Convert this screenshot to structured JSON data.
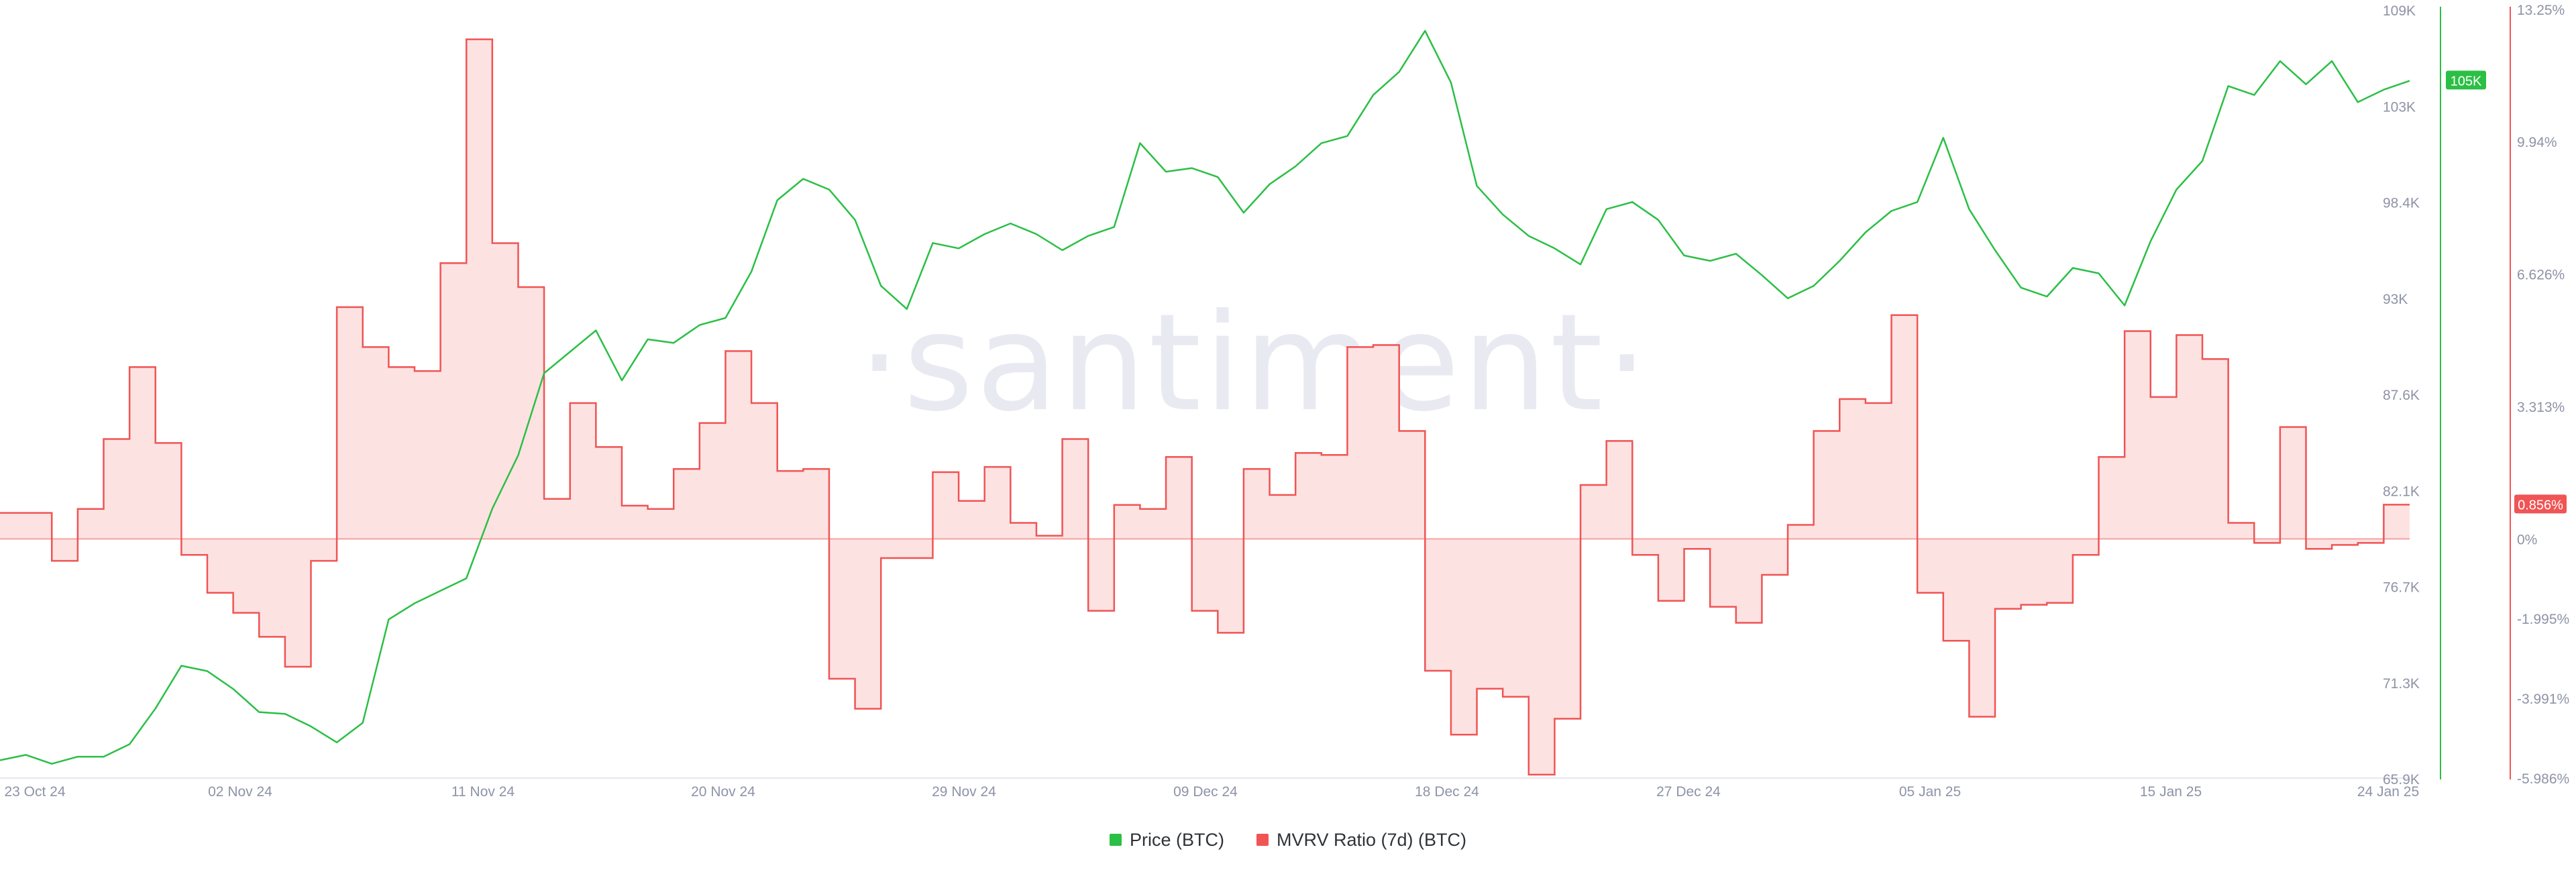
{
  "watermark": "·santiment·",
  "colors": {
    "price": "#2bbf45",
    "mvrv": "#f05454",
    "mvrv_fill": "#fde2e2",
    "zero_line": "#f3a3a3",
    "axis_text": "#8e93a6",
    "watermark": "#e9eaf1",
    "grid": "#e6e8ee"
  },
  "chart_data": {
    "type": "line",
    "x_ticks": [
      "23 Oct 24",
      "02 Nov 24",
      "11 Nov 24",
      "20 Nov 24",
      "29 Nov 24",
      "09 Dec 24",
      "18 Dec 24",
      "27 Dec 24",
      "05 Jan 25",
      "15 Jan 25",
      "24 Jan 25"
    ],
    "x_range": [
      "2024-10-23",
      "2025-01-24"
    ],
    "y_left": {
      "ticks": [
        "109K",
        "103K",
        "98.4K",
        "93K",
        "87.6K",
        "82.1K",
        "76.7K",
        "71.3K",
        "65.9K"
      ],
      "range": [
        65900,
        109000
      ],
      "current_label": "105K",
      "current_value": 105000
    },
    "y_right": {
      "ticks": [
        "13.25%",
        "9.94%",
        "6.626%",
        "3.313%",
        "0%",
        "-1.995%",
        "-3.991%",
        "-5.986%"
      ],
      "range": [
        -5.986,
        13.25
      ],
      "current_label": "0.856%",
      "current_value": 0.856
    },
    "series": [
      {
        "name": "Price (BTC)",
        "axis": "left",
        "points": [
          [
            "2024-10-23",
            66900
          ],
          [
            "2024-10-24",
            67200
          ],
          [
            "2024-10-25",
            66700
          ],
          [
            "2024-10-26",
            67100
          ],
          [
            "2024-10-27",
            67100
          ],
          [
            "2024-10-28",
            67800
          ],
          [
            "2024-10-29",
            69800
          ],
          [
            "2024-10-30",
            72200
          ],
          [
            "2024-10-31",
            71900
          ],
          [
            "2024-11-01",
            70900
          ],
          [
            "2024-11-02",
            69600
          ],
          [
            "2024-11-03",
            69500
          ],
          [
            "2024-11-04",
            68800
          ],
          [
            "2024-11-05",
            67900
          ],
          [
            "2024-11-06",
            69000
          ],
          [
            "2024-11-07",
            74800
          ],
          [
            "2024-11-08",
            75700
          ],
          [
            "2024-11-09",
            76400
          ],
          [
            "2024-11-10",
            77100
          ],
          [
            "2024-11-11",
            81000
          ],
          [
            "2024-11-12",
            84000
          ],
          [
            "2024-11-13",
            88600
          ],
          [
            "2024-11-14",
            89800
          ],
          [
            "2024-11-15",
            91000
          ],
          [
            "2024-11-16",
            88200
          ],
          [
            "2024-11-17",
            90500
          ],
          [
            "2024-11-18",
            90300
          ],
          [
            "2024-11-19",
            91300
          ],
          [
            "2024-11-20",
            91700
          ],
          [
            "2024-11-21",
            94300
          ],
          [
            "2024-11-22",
            98300
          ],
          [
            "2024-11-23",
            99500
          ],
          [
            "2024-11-24",
            98900
          ],
          [
            "2024-11-25",
            97200
          ],
          [
            "2024-11-26",
            93500
          ],
          [
            "2024-11-27",
            92200
          ],
          [
            "2024-11-28",
            95900
          ],
          [
            "2024-11-29",
            95600
          ],
          [
            "2024-11-30",
            96400
          ],
          [
            "2024-12-01",
            97000
          ],
          [
            "2024-12-02",
            96400
          ],
          [
            "2024-12-03",
            95500
          ],
          [
            "2024-12-04",
            96300
          ],
          [
            "2024-12-05",
            96800
          ],
          [
            "2024-12-06",
            101500
          ],
          [
            "2024-12-07",
            99900
          ],
          [
            "2024-12-08",
            100100
          ],
          [
            "2024-12-09",
            99600
          ],
          [
            "2024-12-10",
            97600
          ],
          [
            "2024-12-11",
            99200
          ],
          [
            "2024-12-12",
            100200
          ],
          [
            "2024-12-13",
            101500
          ],
          [
            "2024-12-14",
            101900
          ],
          [
            "2024-12-15",
            104200
          ],
          [
            "2024-12-16",
            105500
          ],
          [
            "2024-12-17",
            107800
          ],
          [
            "2024-12-18",
            104900
          ],
          [
            "2024-12-19",
            99100
          ],
          [
            "2024-12-20",
            97500
          ],
          [
            "2024-12-21",
            96300
          ],
          [
            "2024-12-22",
            95600
          ],
          [
            "2024-12-23",
            94700
          ],
          [
            "2024-12-24",
            97800
          ],
          [
            "2024-12-25",
            98200
          ],
          [
            "2024-12-26",
            97200
          ],
          [
            "2024-12-27",
            95200
          ],
          [
            "2024-12-28",
            94900
          ],
          [
            "2024-12-29",
            95300
          ],
          [
            "2024-12-30",
            94100
          ],
          [
            "2024-12-31",
            92800
          ],
          [
            "2025-01-01",
            93500
          ],
          [
            "2025-01-02",
            94900
          ],
          [
            "2025-01-03",
            96500
          ],
          [
            "2025-01-04",
            97700
          ],
          [
            "2025-01-05",
            98200
          ],
          [
            "2025-01-06",
            101800
          ],
          [
            "2025-01-07",
            97800
          ],
          [
            "2025-01-08",
            95500
          ],
          [
            "2025-01-09",
            93400
          ],
          [
            "2025-01-10",
            92900
          ],
          [
            "2025-01-11",
            94500
          ],
          [
            "2025-01-12",
            94200
          ],
          [
            "2025-01-13",
            92400
          ],
          [
            "2025-01-14",
            96000
          ],
          [
            "2025-01-15",
            98900
          ],
          [
            "2025-01-16",
            100500
          ],
          [
            "2025-01-17",
            104700
          ],
          [
            "2025-01-18",
            104200
          ],
          [
            "2025-01-19",
            106100
          ],
          [
            "2025-01-20",
            104800
          ],
          [
            "2025-01-21",
            106100
          ],
          [
            "2025-01-22",
            103800
          ],
          [
            "2025-01-23",
            104500
          ],
          [
            "2025-01-24",
            105000
          ]
        ]
      },
      {
        "name": "MVRV Ratio (7d) (BTC)",
        "axis": "right",
        "points": [
          [
            "2024-10-23",
            0.65
          ],
          [
            "2024-10-24",
            0.65
          ],
          [
            "2024-10-25",
            -0.55
          ],
          [
            "2024-10-26",
            0.75
          ],
          [
            "2024-10-27",
            2.5
          ],
          [
            "2024-10-28",
            4.3
          ],
          [
            "2024-10-29",
            2.4
          ],
          [
            "2024-10-30",
            -0.4
          ],
          [
            "2024-10-31",
            -1.35
          ],
          [
            "2024-11-01",
            -1.85
          ],
          [
            "2024-11-02",
            -2.45
          ],
          [
            "2024-11-03",
            -3.2
          ],
          [
            "2024-11-04",
            -0.55
          ],
          [
            "2024-11-05",
            5.8
          ],
          [
            "2024-11-06",
            4.8
          ],
          [
            "2024-11-07",
            4.3
          ],
          [
            "2024-11-08",
            4.2
          ],
          [
            "2024-11-09",
            6.9
          ],
          [
            "2024-11-10",
            12.5
          ],
          [
            "2024-11-11",
            7.4
          ],
          [
            "2024-11-12",
            6.3
          ],
          [
            "2024-11-13",
            1.0
          ],
          [
            "2024-11-14",
            3.4
          ],
          [
            "2024-11-15",
            2.3
          ],
          [
            "2024-11-16",
            0.83
          ],
          [
            "2024-11-17",
            0.75
          ],
          [
            "2024-11-18",
            1.75
          ],
          [
            "2024-11-19",
            2.9
          ],
          [
            "2024-11-20",
            4.7
          ],
          [
            "2024-11-21",
            3.4
          ],
          [
            "2024-11-22",
            1.7
          ],
          [
            "2024-11-23",
            1.75
          ],
          [
            "2024-11-24",
            -3.5
          ],
          [
            "2024-11-25",
            -4.25
          ],
          [
            "2024-11-26",
            -0.48
          ],
          [
            "2024-11-27",
            -0.48
          ],
          [
            "2024-11-28",
            1.67
          ],
          [
            "2024-11-29",
            0.95
          ],
          [
            "2024-11-30",
            1.8
          ],
          [
            "2024-12-01",
            0.4
          ],
          [
            "2024-12-02",
            0.08
          ],
          [
            "2024-12-03",
            2.5
          ],
          [
            "2024-12-04",
            -1.8
          ],
          [
            "2024-12-05",
            0.85
          ],
          [
            "2024-12-06",
            0.75
          ],
          [
            "2024-12-07",
            2.05
          ],
          [
            "2024-12-08",
            -1.8
          ],
          [
            "2024-12-09",
            -2.35
          ],
          [
            "2024-12-10",
            1.75
          ],
          [
            "2024-12-11",
            1.1
          ],
          [
            "2024-12-12",
            2.15
          ],
          [
            "2024-12-13",
            2.1
          ],
          [
            "2024-12-14",
            4.8
          ],
          [
            "2024-12-15",
            4.85
          ],
          [
            "2024-12-16",
            2.7
          ],
          [
            "2024-12-17",
            -3.3
          ],
          [
            "2024-12-18",
            -4.9
          ],
          [
            "2024-12-19",
            -3.75
          ],
          [
            "2024-12-20",
            -3.95
          ],
          [
            "2024-12-21",
            -5.9
          ],
          [
            "2024-12-22",
            -4.5
          ],
          [
            "2024-12-23",
            1.35
          ],
          [
            "2024-12-24",
            2.45
          ],
          [
            "2024-12-25",
            -0.4
          ],
          [
            "2024-12-26",
            -1.55
          ],
          [
            "2024-12-27",
            -0.25
          ],
          [
            "2024-12-28",
            -1.7
          ],
          [
            "2024-12-29",
            -2.1
          ],
          [
            "2024-12-30",
            -0.9
          ],
          [
            "2024-12-31",
            0.35
          ],
          [
            "2025-01-01",
            2.7
          ],
          [
            "2025-01-02",
            3.5
          ],
          [
            "2025-01-03",
            3.4
          ],
          [
            "2025-01-04",
            5.6
          ],
          [
            "2025-01-05",
            -1.35
          ],
          [
            "2025-01-06",
            -2.55
          ],
          [
            "2025-01-07",
            -4.45
          ],
          [
            "2025-01-08",
            -1.75
          ],
          [
            "2025-01-09",
            -1.65
          ],
          [
            "2025-01-10",
            -1.6
          ],
          [
            "2025-01-11",
            -0.4
          ],
          [
            "2025-01-12",
            2.05
          ],
          [
            "2025-01-13",
            5.2
          ],
          [
            "2025-01-14",
            3.55
          ],
          [
            "2025-01-15",
            5.1
          ],
          [
            "2025-01-16",
            4.5
          ],
          [
            "2025-01-17",
            0.4
          ],
          [
            "2025-01-18",
            -0.1
          ],
          [
            "2025-01-19",
            2.8
          ],
          [
            "2025-01-20",
            -0.25
          ],
          [
            "2025-01-21",
            -0.15
          ],
          [
            "2025-01-22",
            -0.1
          ],
          [
            "2025-01-23",
            0.856
          ],
          [
            "2025-01-24",
            0.856
          ]
        ]
      }
    ],
    "grid": false,
    "legend_position": "bottom-center"
  },
  "legend": {
    "items": [
      {
        "label": "Price (BTC)",
        "color": "#2bbf45"
      },
      {
        "label": "MVRV Ratio (7d) (BTC)",
        "color": "#f05454"
      }
    ]
  }
}
